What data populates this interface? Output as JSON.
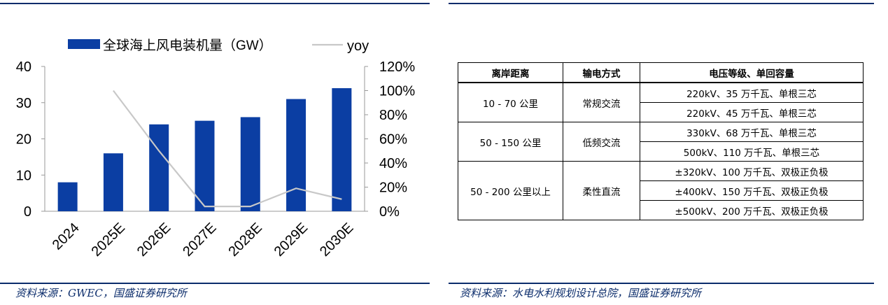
{
  "left": {
    "legend": {
      "bar_label": "全球海上风电装机量（GW）",
      "line_label": "yoy"
    },
    "source": "资料来源：GWEC，国盛证券研究所"
  },
  "chart_data": {
    "type": "bar",
    "title": "",
    "categories": [
      "2024",
      "2025E",
      "2026E",
      "2027E",
      "2028E",
      "2029E",
      "2030E"
    ],
    "series": [
      {
        "name": "全球海上风电装机量（GW）",
        "type": "bar",
        "axis": "left",
        "values": [
          8,
          16,
          24,
          25,
          26,
          31,
          34
        ],
        "color": "#0b3ea3"
      },
      {
        "name": "yoy",
        "type": "line",
        "axis": "right",
        "values": [
          null,
          1.0,
          0.5,
          0.04,
          0.04,
          0.19,
          0.1
        ],
        "color": "#c8c8c8"
      }
    ],
    "y_left": {
      "min": 0,
      "max": 40,
      "ticks": [
        "0",
        "10",
        "20",
        "30",
        "40"
      ]
    },
    "y_right": {
      "min": 0,
      "max": 1.2,
      "ticks": [
        "0%",
        "20%",
        "40%",
        "60%",
        "80%",
        "100%",
        "120%"
      ]
    },
    "grid": false,
    "legend_position": "top"
  },
  "right": {
    "table": {
      "headers": [
        "离岸距离",
        "输电方式",
        "电压等级、单回容量"
      ],
      "groups": [
        {
          "distance": "10 - 70 公里",
          "method": "常规交流",
          "rows": [
            "220kV、35 万千瓦、单根三芯",
            "220kV、45 万千瓦、单根三芯"
          ]
        },
        {
          "distance": "50 - 150 公里",
          "method": "低频交流",
          "rows": [
            "330kV、68 万千瓦、单根三芯",
            "500kV、110 万千瓦、单根三芯"
          ]
        },
        {
          "distance": "50 - 200 公里以上",
          "method": "柔性直流",
          "rows": [
            "±320kV、100 万千瓦、双极正负极",
            "±400kV、150 万千瓦、双极正负极",
            "±500kV、200 万千瓦、双极正负极"
          ]
        }
      ]
    },
    "source": "资料来源：水电水利规划设计总院，国盛证券研究所"
  }
}
